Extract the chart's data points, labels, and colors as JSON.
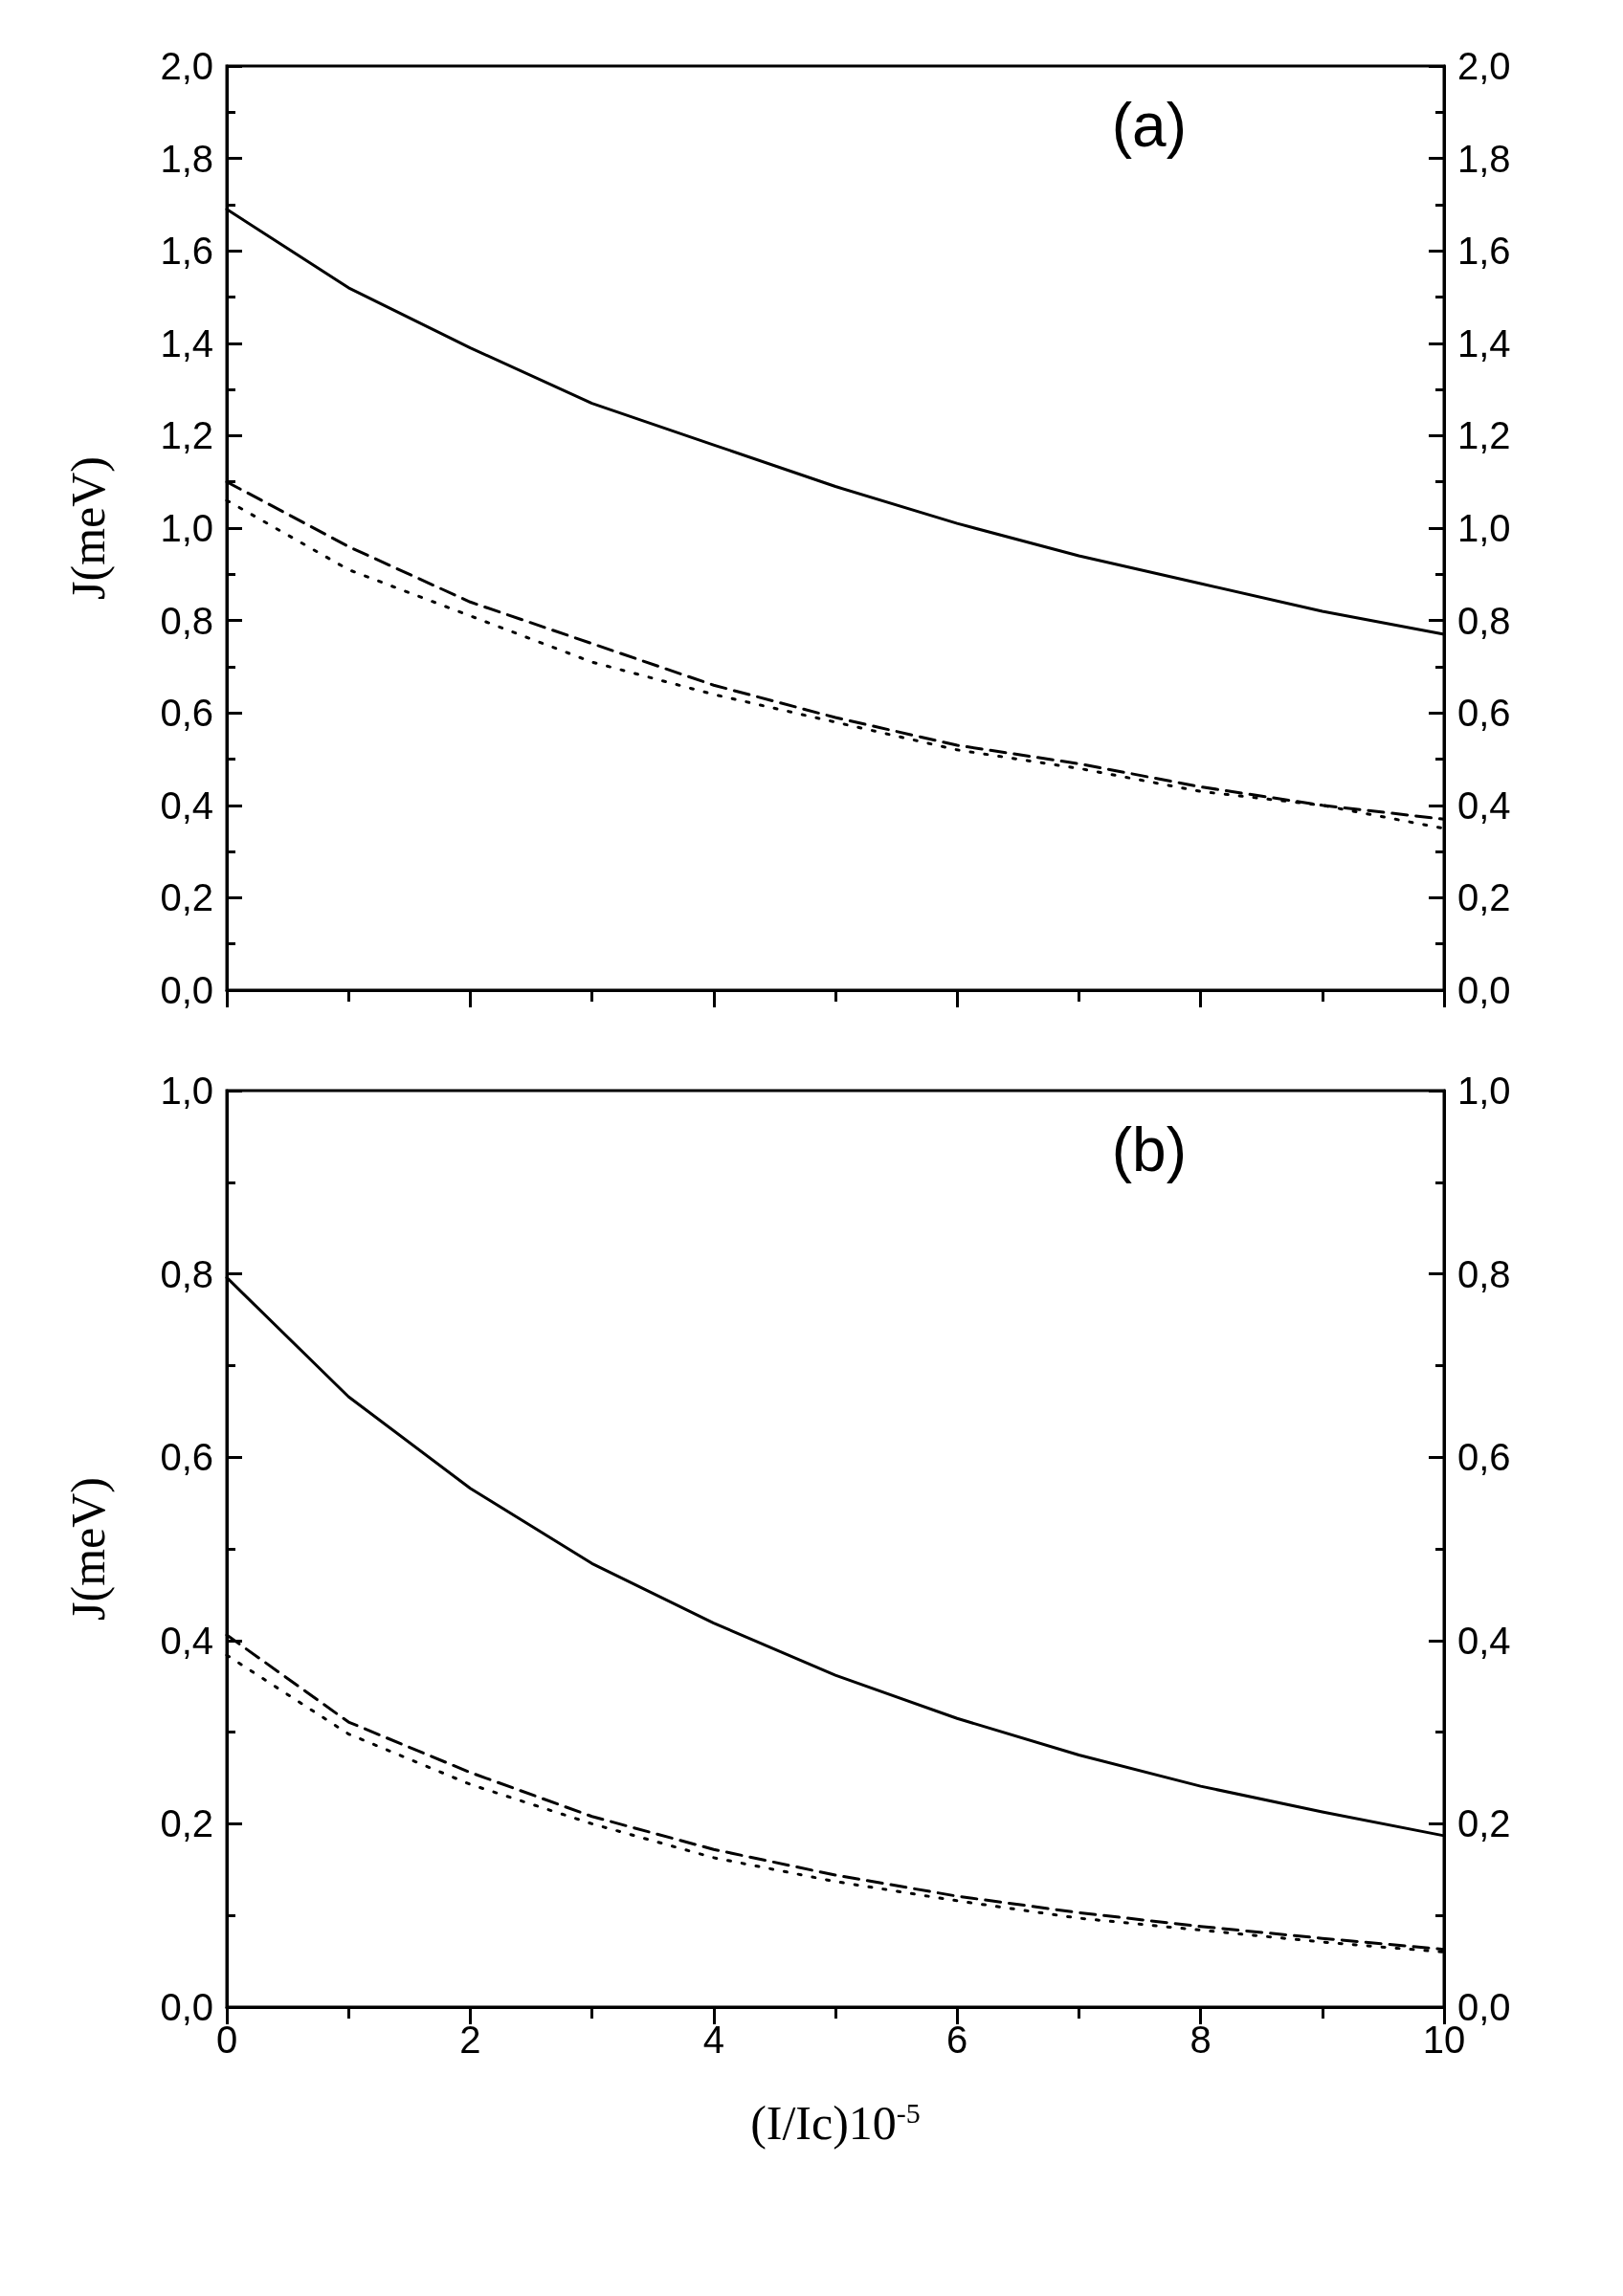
{
  "chart_data": [
    {
      "type": "line",
      "annotations": [
        "(a)"
      ],
      "ylabel": "J(meV)",
      "x": [
        0,
        1,
        2,
        3,
        4,
        5,
        6,
        7,
        8,
        9,
        10
      ],
      "series": [
        {
          "color": "#000000",
          "line_style": "solid",
          "values": [
            1.69,
            1.52,
            1.39,
            1.27,
            1.18,
            1.09,
            1.01,
            0.94,
            0.88,
            0.82,
            0.77
          ]
        },
        {
          "color": "#000000",
          "line_style": "dashed",
          "values": [
            1.1,
            0.96,
            0.84,
            0.75,
            0.66,
            0.59,
            0.53,
            0.49,
            0.44,
            0.4,
            0.37
          ]
        },
        {
          "color": "#000000",
          "line_style": "dotted",
          "values": [
            1.06,
            0.91,
            0.81,
            0.71,
            0.64,
            0.58,
            0.52,
            0.48,
            0.43,
            0.4,
            0.35
          ]
        }
      ],
      "xlim": [
        0,
        10
      ],
      "xticks": [
        0,
        2,
        4,
        6,
        8,
        10
      ],
      "ylim": [
        0,
        2
      ],
      "yticks": [
        {
          "value": 0,
          "label": "0,0"
        },
        {
          "value": 0.2,
          "label": "0,2"
        },
        {
          "value": 0.4,
          "label": "0,4"
        },
        {
          "value": 0.6,
          "label": "0,6"
        },
        {
          "value": 0.8,
          "label": "0,8"
        },
        {
          "value": 1.0,
          "label": "1,0"
        },
        {
          "value": 1.2,
          "label": "1,2"
        },
        {
          "value": 1.4,
          "label": "1,4"
        },
        {
          "value": 1.6,
          "label": "1,6"
        },
        {
          "value": 1.8,
          "label": "1,8"
        },
        {
          "value": 2.0,
          "label": "2,0"
        }
      ],
      "y2lim": [
        0,
        2
      ],
      "y2ticks": [
        {
          "value": 0,
          "label": "0,0"
        },
        {
          "value": 0.2,
          "label": "0,2"
        },
        {
          "value": 0.4,
          "label": "0,4"
        },
        {
          "value": 0.6,
          "label": "0,6"
        },
        {
          "value": 0.8,
          "label": "0,8"
        },
        {
          "value": 1.0,
          "label": "1,0"
        },
        {
          "value": 1.2,
          "label": "1,2"
        },
        {
          "value": 1.4,
          "label": "1,4"
        },
        {
          "value": 1.6,
          "label": "1,6"
        },
        {
          "value": 1.8,
          "label": "1,8"
        },
        {
          "value": 2.0,
          "label": "2,0"
        }
      ],
      "tick_labels": "y",
      "grid": false,
      "marker": "none"
    },
    {
      "type": "line",
      "annotations": [
        "(b)"
      ],
      "ylabel": "J(meV)",
      "xlabel": "(I/Ic)10$^{-5}$",
      "x": [
        0,
        1,
        2,
        3,
        4,
        5,
        6,
        7,
        8,
        9,
        10
      ],
      "series": [
        {
          "color": "#000000",
          "line_style": "solid",
          "values": [
            0.796,
            0.666,
            0.566,
            0.484,
            0.419,
            0.362,
            0.315,
            0.275,
            0.241,
            0.213,
            0.187
          ]
        },
        {
          "color": "#000000",
          "line_style": "dashed",
          "values": [
            0.406,
            0.311,
            0.256,
            0.208,
            0.172,
            0.144,
            0.121,
            0.103,
            0.088,
            0.075,
            0.063
          ]
        },
        {
          "color": "#000000",
          "line_style": "dotted",
          "values": [
            0.384,
            0.298,
            0.243,
            0.2,
            0.163,
            0.137,
            0.116,
            0.097,
            0.084,
            0.071,
            0.06
          ]
        }
      ],
      "xlim": [
        0,
        10
      ],
      "xticks": [
        0,
        2,
        4,
        6,
        8,
        10
      ],
      "ylim": [
        0,
        1
      ],
      "yticks": [
        {
          "value": 0,
          "label": "0,0"
        },
        {
          "value": 0.2,
          "label": "0,2"
        },
        {
          "value": 0.4,
          "label": "0,4"
        },
        {
          "value": 0.6,
          "label": "0,6"
        },
        {
          "value": 0.8,
          "label": "0,8"
        },
        {
          "value": 1.0,
          "label": "1,0"
        }
      ],
      "y2lim": [
        0,
        1
      ],
      "y2ticks": [
        {
          "value": 0,
          "label": "0,0"
        },
        {
          "value": 0.2,
          "label": "0,2"
        },
        {
          "value": 0.4,
          "label": "0,4"
        },
        {
          "value": 0.6,
          "label": "0,6"
        },
        {
          "value": 0.8,
          "label": "0,8"
        },
        {
          "value": 1.0,
          "label": "1,0"
        }
      ],
      "grid": false,
      "marker": "none"
    }
  ]
}
